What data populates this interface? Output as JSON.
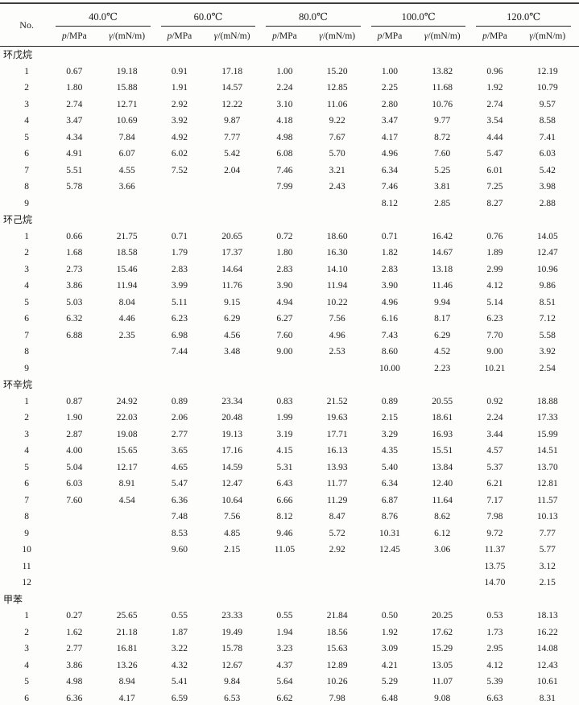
{
  "table": {
    "no_header": "No.",
    "temp_headers": [
      "40.0℃",
      "60.0℃",
      "80.0℃",
      "100.0℃",
      "120.0℃"
    ],
    "sub_headers": {
      "p_symbol": "p",
      "p_rest": "/MPa",
      "gamma_symbol": "γ",
      "gamma_rest": "/(mN/m)"
    },
    "groups": [
      {
        "name": "环戊烷",
        "rows": [
          {
            "no": "1",
            "v": [
              "0.67",
              "19.18",
              "0.91",
              "17.18",
              "1.00",
              "15.20",
              "1.00",
              "13.82",
              "0.96",
              "12.19"
            ]
          },
          {
            "no": "2",
            "v": [
              "1.80",
              "15.88",
              "1.91",
              "14.57",
              "2.24",
              "12.85",
              "2.25",
              "11.68",
              "1.92",
              "10.79"
            ]
          },
          {
            "no": "3",
            "v": [
              "2.74",
              "12.71",
              "2.92",
              "12.22",
              "3.10",
              "11.06",
              "2.80",
              "10.76",
              "2.74",
              "9.57"
            ]
          },
          {
            "no": "4",
            "v": [
              "3.47",
              "10.69",
              "3.92",
              "9.87",
              "4.18",
              "9.22",
              "3.47",
              "9.77",
              "3.54",
              "8.58"
            ]
          },
          {
            "no": "5",
            "v": [
              "4.34",
              "7.84",
              "4.92",
              "7.77",
              "4.98",
              "7.67",
              "4.17",
              "8.72",
              "4.44",
              "7.41"
            ]
          },
          {
            "no": "6",
            "v": [
              "4.91",
              "6.07",
              "6.02",
              "5.42",
              "6.08",
              "5.70",
              "4.96",
              "7.60",
              "5.47",
              "6.03"
            ]
          },
          {
            "no": "7",
            "v": [
              "5.51",
              "4.55",
              "7.52",
              "2.04",
              "7.46",
              "3.21",
              "6.34",
              "5.25",
              "6.01",
              "5.42"
            ]
          },
          {
            "no": "8",
            "v": [
              "5.78",
              "3.66",
              "",
              "",
              "7.99",
              "2.43",
              "7.46",
              "3.81",
              "7.25",
              "3.98"
            ]
          },
          {
            "no": "9",
            "v": [
              "",
              "",
              "",
              "",
              "",
              "",
              "8.12",
              "2.85",
              "8.27",
              "2.88"
            ]
          }
        ]
      },
      {
        "name": "环己烷",
        "rows": [
          {
            "no": "1",
            "v": [
              "0.66",
              "21.75",
              "0.71",
              "20.65",
              "0.72",
              "18.60",
              "0.71",
              "16.42",
              "0.76",
              "14.05"
            ]
          },
          {
            "no": "2",
            "v": [
              "1.68",
              "18.58",
              "1.79",
              "17.37",
              "1.80",
              "16.30",
              "1.82",
              "14.67",
              "1.89",
              "12.47"
            ]
          },
          {
            "no": "3",
            "v": [
              "2.73",
              "15.46",
              "2.83",
              "14.64",
              "2.83",
              "14.10",
              "2.83",
              "13.18",
              "2.99",
              "10.96"
            ]
          },
          {
            "no": "4",
            "v": [
              "3.86",
              "11.94",
              "3.99",
              "11.76",
              "3.90",
              "11.94",
              "3.90",
              "11.46",
              "4.12",
              "9.86"
            ]
          },
          {
            "no": "5",
            "v": [
              "5.03",
              "8.04",
              "5.11",
              "9.15",
              "4.94",
              "10.22",
              "4.96",
              "9.94",
              "5.14",
              "8.51"
            ]
          },
          {
            "no": "6",
            "v": [
              "6.32",
              "4.46",
              "6.23",
              "6.29",
              "6.27",
              "7.56",
              "6.16",
              "8.17",
              "6.23",
              "7.12"
            ]
          },
          {
            "no": "7",
            "v": [
              "6.88",
              "2.35",
              "6.98",
              "4.56",
              "7.60",
              "4.96",
              "7.43",
              "6.29",
              "7.70",
              "5.58"
            ]
          },
          {
            "no": "8",
            "v": [
              "",
              "",
              "7.44",
              "3.48",
              "9.00",
              "2.53",
              "8.60",
              "4.52",
              "9.00",
              "3.92"
            ]
          },
          {
            "no": "9",
            "v": [
              "",
              "",
              "",
              "",
              "",
              "",
              "10.00",
              "2.23",
              "10.21",
              "2.54"
            ]
          }
        ]
      },
      {
        "name": "环辛烷",
        "rows": [
          {
            "no": "1",
            "v": [
              "0.87",
              "24.92",
              "0.89",
              "23.34",
              "0.83",
              "21.52",
              "0.89",
              "20.55",
              "0.92",
              "18.88"
            ]
          },
          {
            "no": "2",
            "v": [
              "1.90",
              "22.03",
              "2.06",
              "20.48",
              "1.99",
              "19.63",
              "2.15",
              "18.61",
              "2.24",
              "17.33"
            ]
          },
          {
            "no": "3",
            "v": [
              "2.87",
              "19.08",
              "2.77",
              "19.13",
              "3.19",
              "17.71",
              "3.29",
              "16.93",
              "3.44",
              "15.99"
            ]
          },
          {
            "no": "4",
            "v": [
              "4.00",
              "15.65",
              "3.65",
              "17.16",
              "4.15",
              "16.13",
              "4.35",
              "15.51",
              "4.57",
              "14.51"
            ]
          },
          {
            "no": "5",
            "v": [
              "5.04",
              "12.17",
              "4.65",
              "14.59",
              "5.31",
              "13.93",
              "5.40",
              "13.84",
              "5.37",
              "13.70"
            ]
          },
          {
            "no": "6",
            "v": [
              "6.03",
              "8.91",
              "5.47",
              "12.47",
              "6.43",
              "11.77",
              "6.34",
              "12.40",
              "6.21",
              "12.81"
            ]
          },
          {
            "no": "7",
            "v": [
              "7.60",
              "4.54",
              "6.36",
              "10.64",
              "6.66",
              "11.29",
              "6.87",
              "11.64",
              "7.17",
              "11.57"
            ]
          },
          {
            "no": "8",
            "v": [
              "",
              "",
              "7.48",
              "7.56",
              "8.12",
              "8.47",
              "8.76",
              "8.62",
              "7.98",
              "10.13"
            ]
          },
          {
            "no": "9",
            "v": [
              "",
              "",
              "8.53",
              "4.85",
              "9.46",
              "5.72",
              "10.31",
              "6.12",
              "9.72",
              "7.77"
            ]
          },
          {
            "no": "10",
            "v": [
              "",
              "",
              "9.60",
              "2.15",
              "11.05",
              "2.92",
              "12.45",
              "3.06",
              "11.37",
              "5.77"
            ]
          },
          {
            "no": "11",
            "v": [
              "",
              "",
              "",
              "",
              "",
              "",
              "",
              "",
              "13.75",
              "3.12"
            ]
          },
          {
            "no": "12",
            "v": [
              "",
              "",
              "",
              "",
              "",
              "",
              "",
              "",
              "14.70",
              "2.15"
            ]
          }
        ]
      },
      {
        "name": "甲苯",
        "rows": [
          {
            "no": "1",
            "v": [
              "0.27",
              "25.65",
              "0.55",
              "23.33",
              "0.55",
              "21.84",
              "0.50",
              "20.25",
              "0.53",
              "18.13"
            ]
          },
          {
            "no": "2",
            "v": [
              "1.62",
              "21.18",
              "1.87",
              "19.49",
              "1.94",
              "18.56",
              "1.92",
              "17.62",
              "1.73",
              "16.22"
            ]
          },
          {
            "no": "3",
            "v": [
              "2.77",
              "16.81",
              "3.22",
              "15.78",
              "3.23",
              "15.63",
              "3.09",
              "15.29",
              "2.95",
              "14.08"
            ]
          },
          {
            "no": "4",
            "v": [
              "3.86",
              "13.26",
              "4.32",
              "12.67",
              "4.37",
              "12.89",
              "4.21",
              "13.05",
              "4.12",
              "12.43"
            ]
          },
          {
            "no": "5",
            "v": [
              "4.98",
              "8.94",
              "5.41",
              "9.84",
              "5.64",
              "10.26",
              "5.29",
              "11.07",
              "5.39",
              "10.61"
            ]
          },
          {
            "no": "6",
            "v": [
              "6.36",
              "4.17",
              "6.59",
              "6.53",
              "6.62",
              "7.98",
              "6.48",
              "9.08",
              "6.63",
              "8.31"
            ]
          }
        ]
      }
    ]
  }
}
